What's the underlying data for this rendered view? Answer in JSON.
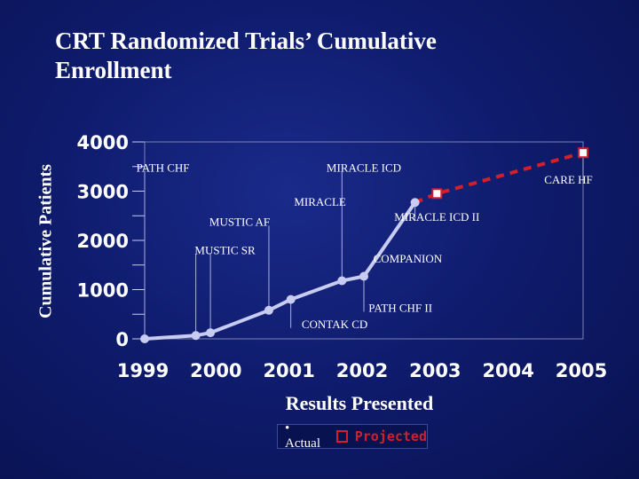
{
  "slide": {
    "title_line1": "CRT Randomized Trials’ Cumulative",
    "title_line2": "Enrollment"
  },
  "colors": {
    "background": "#0f1c6e",
    "actual_line": "#c8ccf0",
    "projected_line": "#d21f2a",
    "text": "#ffffff"
  },
  "chart_data": {
    "type": "line",
    "ylabel": "Cumulative Patients",
    "xlabel": "Results Presented",
    "x_ticks": [
      "1999",
      "2000",
      "2001",
      "2002",
      "2003",
      "2004",
      "2005"
    ],
    "y_ticks": [
      "0",
      "1000",
      "2000",
      "3000",
      "4000"
    ],
    "xlim": [
      1999,
      2005
    ],
    "ylim": [
      0,
      4000
    ],
    "legend": {
      "actual": "• Actual",
      "projected": "Projected"
    },
    "series": [
      {
        "name": "Actual",
        "points": [
          {
            "x": 1999.0,
            "y": 0
          },
          {
            "x": 1999.7,
            "y": 67
          },
          {
            "x": 1999.9,
            "y": 125
          },
          {
            "x": 2000.7,
            "y": 580
          },
          {
            "x": 2001.0,
            "y": 800
          },
          {
            "x": 2001.7,
            "y": 1180
          },
          {
            "x": 2002.0,
            "y": 1270
          },
          {
            "x": 2002.7,
            "y": 2770
          }
        ]
      },
      {
        "name": "Projected",
        "points": [
          {
            "x": 2002.7,
            "y": 2770
          },
          {
            "x": 2003.0,
            "y": 2950
          },
          {
            "x": 2005.0,
            "y": 3780
          }
        ]
      }
    ],
    "annotations": [
      {
        "text": "PATH CHF",
        "x": 1999.25,
        "y": 3400
      },
      {
        "text": "MIRACLE ICD",
        "x": 2002.0,
        "y": 3400
      },
      {
        "text": "CARE HF",
        "x": 2004.8,
        "y": 3150
      },
      {
        "text": "MIRACLE",
        "x": 2001.4,
        "y": 2700
      },
      {
        "text": "MUSTIC AF",
        "x": 2000.3,
        "y": 2300
      },
      {
        "text": "MIRACLE ICD II",
        "x": 2003.0,
        "y": 2400
      },
      {
        "text": "MUSTIC SR",
        "x": 2000.1,
        "y": 1720
      },
      {
        "text": "COMPANION",
        "x": 2002.6,
        "y": 1550
      },
      {
        "text": "PATH CHF II",
        "x": 2002.5,
        "y": 550
      },
      {
        "text": "CONTAK CD",
        "x": 2001.6,
        "y": 220
      }
    ]
  }
}
